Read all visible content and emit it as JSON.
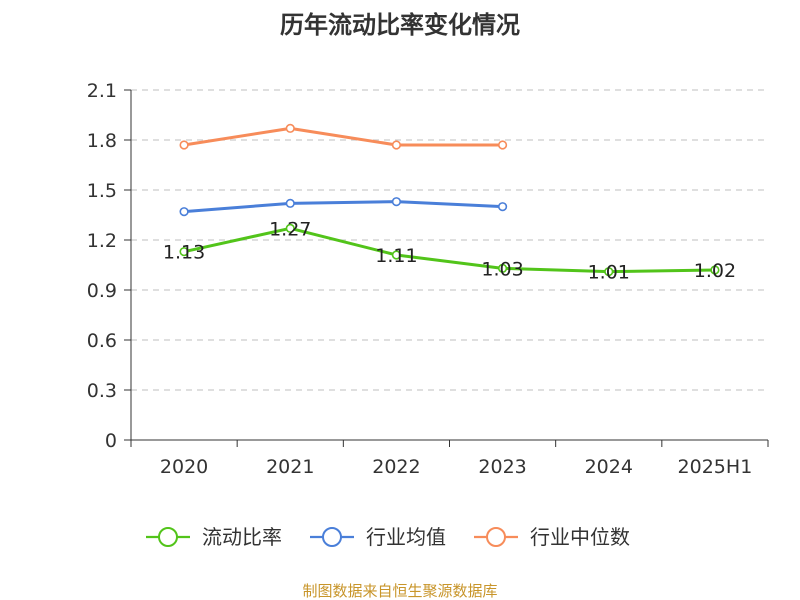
{
  "chart_data": {
    "type": "line",
    "title": "历年流动比率变化情况",
    "categories": [
      "2020",
      "2021",
      "2022",
      "2023",
      "2024",
      "2025H1"
    ],
    "ylim": [
      0,
      2.1
    ],
    "yticks": [
      "0",
      "0.3",
      "0.6",
      "0.9",
      "1.2",
      "1.5",
      "1.8",
      "2.1"
    ],
    "grid": true,
    "legend_position": "bottom",
    "series": [
      {
        "name": "流动比率",
        "color": "#52c41a",
        "values": [
          1.13,
          1.27,
          1.11,
          1.03,
          1.01,
          1.02
        ],
        "labels": [
          "1.13",
          "1.27",
          "1.11",
          "1.03",
          "1.01",
          "1.02"
        ]
      },
      {
        "name": "行业均值",
        "color": "#4a7fd9",
        "values": [
          1.37,
          1.42,
          1.43,
          1.4,
          null,
          null
        ]
      },
      {
        "name": "行业中位数",
        "color": "#f78c5a",
        "values": [
          1.77,
          1.87,
          1.77,
          1.77,
          null,
          null
        ]
      }
    ]
  },
  "source_text": "制图数据来自恒生聚源数据库"
}
